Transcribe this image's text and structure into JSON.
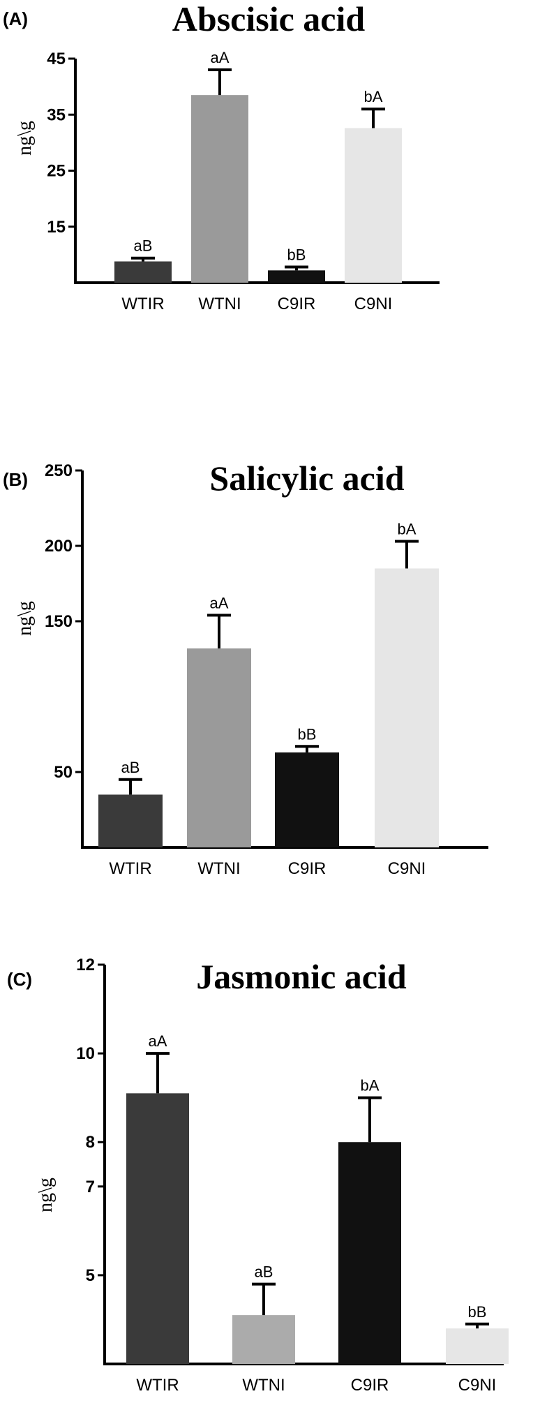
{
  "chart_data": [
    {
      "type": "bar",
      "panel": "(A)",
      "title": "Abscisic acid",
      "ylabel": "ng\\g",
      "yticks": [
        "15",
        "25",
        "35",
        "45"
      ],
      "ylim": [
        5,
        45
      ],
      "categories": [
        "WTIR",
        "WTNI",
        "C9IR",
        "C9NI"
      ],
      "values": [
        8.8,
        38.5,
        7.2,
        32.6
      ],
      "errors": [
        0.6,
        4.5,
        0.6,
        3.4
      ],
      "labels": [
        "aB",
        "aA",
        "bB",
        "bA"
      ],
      "colors": [
        "#3a3a3a",
        "#9a9a9a",
        "#111111",
        "#e6e6e6"
      ]
    },
    {
      "type": "bar",
      "panel": "(B)",
      "title": "Salicylic acid",
      "ylabel": "ng\\g",
      "yticks": [
        "50",
        "150",
        "200",
        "250"
      ],
      "ylim": [
        0,
        250
      ],
      "categories": [
        "WTIR",
        "WTNI",
        "C9IR",
        "C9NI"
      ],
      "values": [
        35,
        132,
        63,
        185
      ],
      "errors": [
        10,
        22,
        4,
        18
      ],
      "labels": [
        "aB",
        "aA",
        "bB",
        "bA"
      ],
      "colors": [
        "#3a3a3a",
        "#9a9a9a",
        "#111111",
        "#e6e6e6"
      ]
    },
    {
      "type": "bar",
      "panel": "(C)",
      "title": "Jasmonic acid",
      "ylabel": "ng\\g",
      "yticks": [
        "5",
        "7",
        "8",
        "10",
        "12"
      ],
      "ylim": [
        3,
        12
      ],
      "categories": [
        "WTIR",
        "WTNI",
        "C9IR",
        "C9NI"
      ],
      "values": [
        9.1,
        4.1,
        8.0,
        3.8
      ],
      "errors": [
        0.9,
        0.7,
        1.0,
        0.1
      ],
      "labels": [
        "aA",
        "aB",
        "bA",
        "bB"
      ],
      "colors": [
        "#3a3a3a",
        "#ababab",
        "#111111",
        "#e6e6e6"
      ]
    }
  ]
}
